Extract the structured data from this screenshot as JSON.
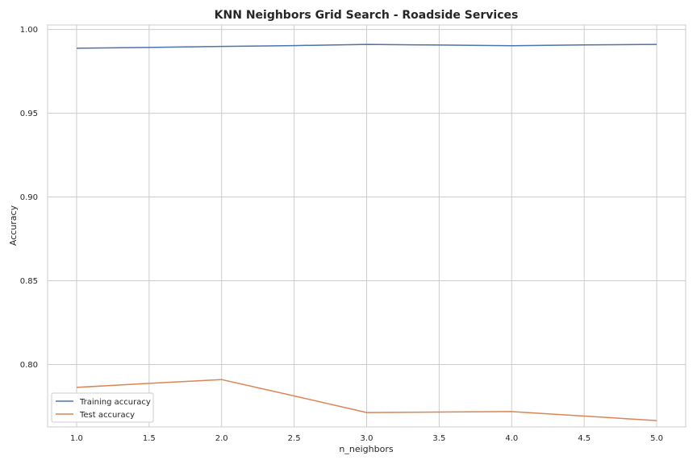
{
  "chart_data": {
    "type": "line",
    "title": "KNN Neighbors Grid Search - Roadside Services",
    "xlabel": "n_neighbors",
    "ylabel": "Accuracy",
    "x": [
      1.0,
      1.5,
      2.0,
      2.5,
      3.0,
      3.5,
      4.0,
      4.5,
      5.0
    ],
    "xlim": [
      0.8,
      5.2
    ],
    "ylim": [
      0.7627,
      1.0027
    ],
    "xticks": [
      1.0,
      1.5,
      2.0,
      2.5,
      3.0,
      3.5,
      4.0,
      4.5,
      5.0
    ],
    "xtick_labels": [
      "1.0",
      "1.5",
      "2.0",
      "2.5",
      "3.0",
      "3.5",
      "4.0",
      "4.5",
      "5.0"
    ],
    "yticks": [
      0.8,
      0.85,
      0.9,
      0.95,
      1.0
    ],
    "ytick_labels": [
      "0.80",
      "0.85",
      "0.90",
      "0.95",
      "1.00"
    ],
    "grid": true,
    "legend_position": "lower-left",
    "series": [
      {
        "name": "Training accuracy",
        "color": "#4c72b0",
        "values": [
          0.9888,
          0.9893,
          0.9899,
          0.9904,
          0.9911,
          0.9907,
          0.9903,
          0.9908,
          0.9911
        ]
      },
      {
        "name": "Test accuracy",
        "color": "#dd8452",
        "values": [
          0.7863,
          0.7887,
          0.791,
          0.7812,
          0.7713,
          0.7716,
          0.7719,
          0.7692,
          0.7665
        ]
      }
    ]
  }
}
